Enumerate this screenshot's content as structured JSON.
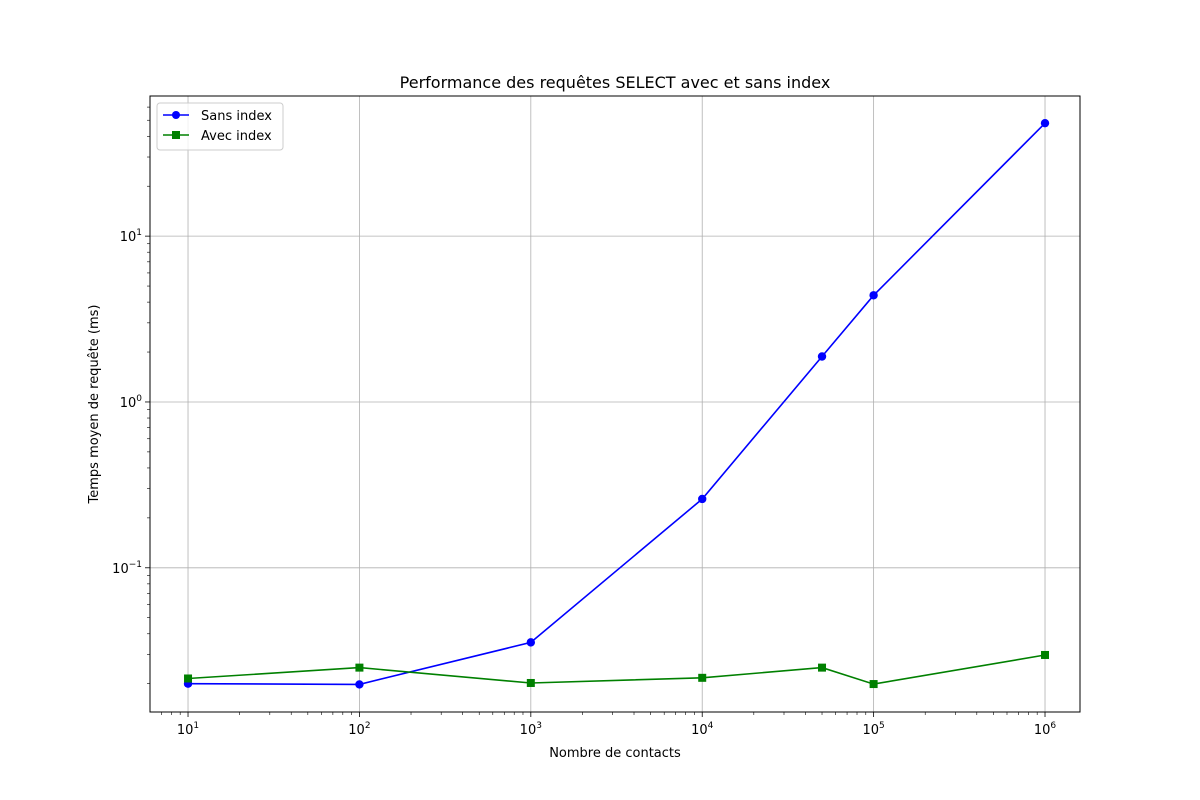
{
  "chart_data": {
    "type": "line",
    "title": "Performance des requêtes SELECT avec et sans index",
    "xlabel": "Nombre de contacts",
    "ylabel": "Temps moyen de requête (ms)",
    "xscale": "log",
    "yscale": "log",
    "xlim": [
      6,
      1600000
    ],
    "ylim": [
      0.0135,
      70
    ],
    "x_ticks": [
      {
        "value": 10,
        "base": "10",
        "exp": "1"
      },
      {
        "value": 100,
        "base": "10",
        "exp": "2"
      },
      {
        "value": 1000,
        "base": "10",
        "exp": "3"
      },
      {
        "value": 10000,
        "base": "10",
        "exp": "4"
      },
      {
        "value": 100000,
        "base": "10",
        "exp": "5"
      },
      {
        "value": 1000000,
        "base": "10",
        "exp": "6"
      }
    ],
    "y_ticks": [
      {
        "value": 0.1,
        "base": "10",
        "exp": "−1"
      },
      {
        "value": 1,
        "base": "10",
        "exp": "0"
      },
      {
        "value": 10,
        "base": "10",
        "exp": "1"
      }
    ],
    "grid": true,
    "legend_position": "top-left",
    "series": [
      {
        "name": "Sans index",
        "color": "#0000ff",
        "marker": "circle",
        "x": [
          10,
          100,
          1000,
          10000,
          50000,
          100000,
          1000000
        ],
        "y": [
          0.02,
          0.0198,
          0.0355,
          0.26,
          1.88,
          4.4,
          48.0
        ]
      },
      {
        "name": "Avec index",
        "color": "#008000",
        "marker": "square",
        "x": [
          10,
          100,
          1000,
          10000,
          50000,
          100000,
          1000000
        ],
        "y": [
          0.0215,
          0.025,
          0.0202,
          0.0217,
          0.025,
          0.0199,
          0.0298
        ]
      }
    ]
  }
}
